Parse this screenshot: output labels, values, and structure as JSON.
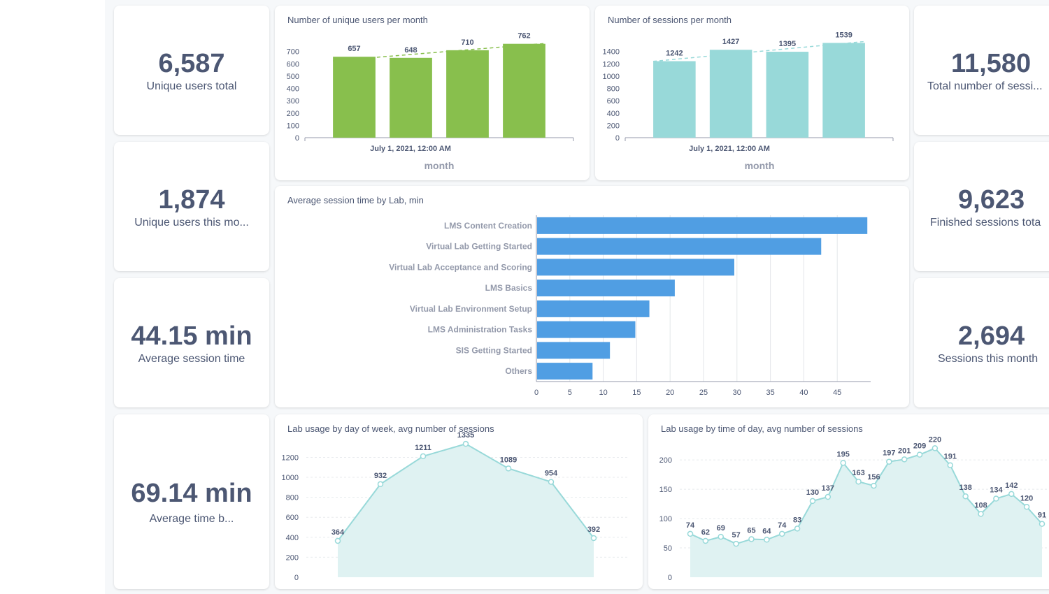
{
  "kpis": {
    "unique_users_total": {
      "value": "6,587",
      "label": "Unique users total"
    },
    "unique_users_month": {
      "value": "1,874",
      "label": "Unique users this mo..."
    },
    "avg_session_time": {
      "value": "44.15 min",
      "label": "Average session time"
    },
    "avg_time_b": {
      "value": "69.14 min",
      "label": "Average time b..."
    },
    "total_sessions": {
      "value": "11,580",
      "label": "Total number of sessi..."
    },
    "finished_sessions": {
      "value": "9,623",
      "label": "Finished sessions tota"
    },
    "sessions_month": {
      "value": "2,694",
      "label": "Sessions this month"
    }
  },
  "colors": {
    "green_bar": "#88bf4d",
    "teal_bar": "#98d9d9",
    "blue_bar": "#509ee3",
    "line": "#98d9d9",
    "area": "#dff2f2",
    "text": "#4c5773",
    "axis": "#949aab"
  },
  "chart_data": [
    {
      "id": "users_per_month",
      "type": "bar",
      "title": "Number of unique users per month",
      "xlabel": "month",
      "x_tick": "July 1, 2021, 12:00 AM",
      "categories": [
        "",
        "",
        "",
        ""
      ],
      "values": [
        657,
        648,
        710,
        762
      ],
      "ylim": [
        0,
        800
      ],
      "yticks": [
        0,
        100,
        200,
        300,
        400,
        500,
        600,
        700
      ],
      "trendline": true
    },
    {
      "id": "sessions_per_month",
      "type": "bar",
      "title": "Number of sessions per month",
      "xlabel": "month",
      "x_tick": "July 1, 2021, 12:00 AM",
      "categories": [
        "",
        "",
        "",
        ""
      ],
      "values": [
        1242,
        1427,
        1395,
        1539
      ],
      "ylim": [
        0,
        1600
      ],
      "yticks": [
        0,
        200,
        400,
        600,
        800,
        1000,
        1200,
        1400
      ],
      "trendline": true
    },
    {
      "id": "avg_session_by_lab",
      "type": "bar",
      "orientation": "horizontal",
      "title": "Average session time by Lab, min",
      "categories": [
        "LMS Content Creation",
        "Virtual Lab Getting Started",
        "Virtual Lab Acceptance and Scoring",
        "LMS Basics",
        "Virtual Lab Environment Setup",
        "LMS Administration Tasks",
        "SIS Getting Started",
        "Others"
      ],
      "values": [
        49.5,
        42.6,
        29.6,
        20.7,
        16.9,
        14.8,
        11.0,
        8.4
      ],
      "xlim": [
        0,
        50
      ],
      "xticks": [
        0,
        5,
        10,
        15,
        20,
        25,
        30,
        35,
        40,
        45
      ],
      "grid": true
    },
    {
      "id": "usage_by_weekday",
      "type": "area",
      "title": "Lab usage by day of week, avg number of sessions",
      "values": [
        364,
        932,
        1211,
        1335,
        1089,
        954,
        392
      ],
      "ylim": [
        0,
        1350
      ],
      "yticks": [
        0,
        200,
        400,
        600,
        800,
        1000,
        1200
      ]
    },
    {
      "id": "usage_by_hour",
      "type": "area",
      "title": "Lab usage by time of day, avg number of sessions",
      "values": [
        74,
        62,
        69,
        57,
        65,
        64,
        74,
        83,
        130,
        137,
        195,
        163,
        156,
        197,
        201,
        209,
        220,
        191,
        138,
        108,
        134,
        142,
        120,
        91
      ],
      "ylim": [
        0,
        230
      ],
      "yticks": [
        0,
        50,
        100,
        150,
        200
      ]
    }
  ]
}
